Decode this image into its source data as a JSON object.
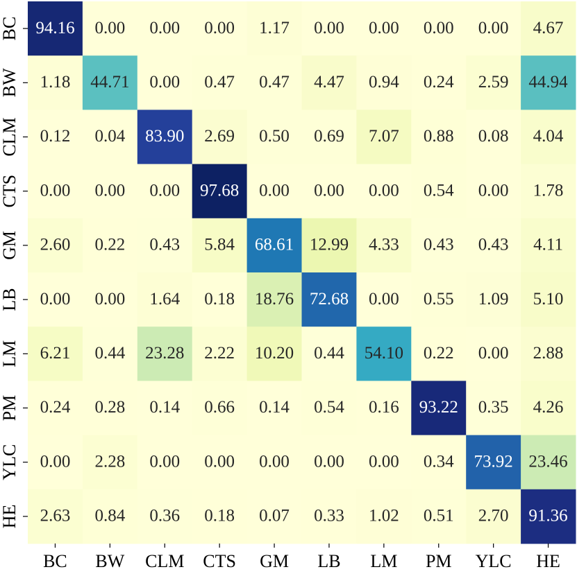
{
  "chart_data": {
    "type": "heatmap",
    "x_categories": [
      "BC",
      "BW",
      "CLM",
      "CTS",
      "GM",
      "LB",
      "LM",
      "PM",
      "YLC",
      "HE"
    ],
    "y_categories": [
      "BC",
      "BW",
      "CLM",
      "CTS",
      "GM",
      "LB",
      "LM",
      "PM",
      "YLC",
      "HE"
    ],
    "values": [
      [
        94.16,
        0,
        0,
        0,
        1.17,
        0,
        0,
        0,
        0,
        4.67
      ],
      [
        1.18,
        44.71,
        0,
        0.47,
        0.47,
        4.47,
        0.94,
        0.24,
        2.59,
        44.94
      ],
      [
        0.12,
        0.04,
        83.9,
        2.69,
        0.5,
        0.69,
        7.07,
        0.88,
        0.08,
        4.04
      ],
      [
        0,
        0,
        0,
        97.68,
        0,
        0,
        0,
        0.54,
        0,
        1.78
      ],
      [
        2.6,
        0.22,
        0.43,
        5.84,
        68.61,
        12.99,
        4.33,
        0.43,
        0.43,
        4.11
      ],
      [
        0,
        0,
        1.64,
        0.18,
        18.76,
        72.68,
        0,
        0.55,
        1.09,
        5.1
      ],
      [
        6.21,
        0.44,
        23.28,
        2.22,
        10.2,
        0.44,
        54.1,
        0.22,
        0,
        2.88
      ],
      [
        0.24,
        0.28,
        0.14,
        0.66,
        0.14,
        0.54,
        0.16,
        93.22,
        0.35,
        4.26
      ],
      [
        0,
        2.28,
        0,
        0,
        0,
        0,
        0,
        0.34,
        73.92,
        23.46
      ],
      [
        2.63,
        0.84,
        0.36,
        0.18,
        0.07,
        0.33,
        1.02,
        0.51,
        2.7,
        91.36
      ]
    ],
    "value_labels": [
      [
        "94.16",
        "0.00",
        "0.00",
        "0.00",
        "1.17",
        "0.00",
        "0.00",
        "0.00",
        "0.00",
        "4.67"
      ],
      [
        "1.18",
        "44.71",
        "0.00",
        "0.47",
        "0.47",
        "4.47",
        "0.94",
        "0.24",
        "2.59",
        "44.94"
      ],
      [
        "0.12",
        "0.04",
        "83.90",
        "2.69",
        "0.50",
        "0.69",
        "7.07",
        "0.88",
        "0.08",
        "4.04"
      ],
      [
        "0.00",
        "0.00",
        "0.00",
        "97.68",
        "0.00",
        "0.00",
        "0.00",
        "0.54",
        "0.00",
        "1.78"
      ],
      [
        "2.60",
        "0.22",
        "0.43",
        "5.84",
        "68.61",
        "12.99",
        "4.33",
        "0.43",
        "0.43",
        "4.11"
      ],
      [
        "0.00",
        "0.00",
        "1.64",
        "0.18",
        "18.76",
        "72.68",
        "0.00",
        "0.55",
        "1.09",
        "5.10"
      ],
      [
        "6.21",
        "0.44",
        "23.28",
        "2.22",
        "10.20",
        "0.44",
        "54.10",
        "0.22",
        "0.00",
        "2.88"
      ],
      [
        "0.24",
        "0.28",
        "0.14",
        "0.66",
        "0.14",
        "0.54",
        "0.16",
        "93.22",
        "0.35",
        "4.26"
      ],
      [
        "0.00",
        "2.28",
        "0.00",
        "0.00",
        "0.00",
        "0.00",
        "0.00",
        "0.34",
        "73.92",
        "23.46"
      ],
      [
        "2.63",
        "0.84",
        "0.36",
        "0.18",
        "0.07",
        "0.33",
        "1.02",
        "0.51",
        "2.70",
        "91.36"
      ]
    ],
    "colormap": "YlGnBu",
    "clim": [
      0,
      100
    ]
  }
}
